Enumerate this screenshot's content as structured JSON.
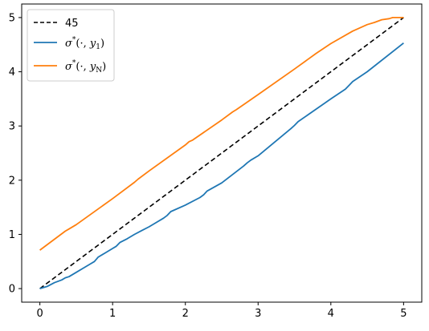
{
  "chart_data": {
    "type": "line",
    "title": "",
    "xlabel": "",
    "ylabel": "",
    "xlim": [
      -0.25,
      5.25
    ],
    "ylim": [
      -0.25,
      5.25
    ],
    "xticks": [
      0,
      1,
      2,
      3,
      4,
      5
    ],
    "yticks": [
      0,
      1,
      2,
      3,
      4,
      5
    ],
    "grid": false,
    "legend_position": "upper-left",
    "series": [
      {
        "name": "45",
        "style": "dashed",
        "color": "#000000",
        "x": [
          0,
          5
        ],
        "y": [
          0,
          5
        ]
      },
      {
        "name": "σ*(·, y1)",
        "style": "solid",
        "color": "#1f77b4",
        "x": [
          0,
          0.1,
          0.2,
          0.3,
          0.35,
          0.4,
          0.5,
          0.6,
          0.7,
          0.75,
          0.8,
          0.9,
          1.0,
          1.05,
          1.1,
          1.2,
          1.3,
          1.4,
          1.5,
          1.6,
          1.7,
          1.75,
          1.8,
          2.0,
          2.2,
          2.25,
          2.3,
          2.5,
          2.8,
          2.85,
          2.9,
          3.0,
          3.45,
          3.5,
          3.55,
          4.0,
          4.2,
          4.25,
          4.3,
          4.5,
          5.0
        ],
        "y": [
          0,
          0.04,
          0.11,
          0.16,
          0.2,
          0.22,
          0.3,
          0.38,
          0.46,
          0.5,
          0.58,
          0.66,
          0.74,
          0.78,
          0.85,
          0.92,
          1.0,
          1.07,
          1.14,
          1.22,
          1.3,
          1.35,
          1.42,
          1.54,
          1.68,
          1.73,
          1.8,
          1.95,
          2.26,
          2.32,
          2.37,
          2.45,
          2.95,
          3.01,
          3.08,
          3.5,
          3.68,
          3.75,
          3.82,
          4.0,
          4.53
        ]
      },
      {
        "name": "σ*(·, yN)",
        "style": "solid",
        "color": "#ff7f0e",
        "x": [
          0,
          0.35,
          0.4,
          0.5,
          1.0,
          1.3,
          1.35,
          1.5,
          2.0,
          2.05,
          2.1,
          2.5,
          2.65,
          2.7,
          3.0,
          3.5,
          3.8,
          4.0,
          4.3,
          4.5,
          4.6,
          4.7,
          4.8,
          4.85,
          4.9,
          5.0
        ],
        "y": [
          0.71,
          1.06,
          1.1,
          1.18,
          1.66,
          1.96,
          2.02,
          2.17,
          2.65,
          2.71,
          2.74,
          3.11,
          3.26,
          3.3,
          3.58,
          4.05,
          4.34,
          4.52,
          4.75,
          4.87,
          4.91,
          4.96,
          4.98,
          5.0,
          5.0,
          5.0
        ]
      }
    ],
    "legend_entries": [
      {
        "label_prefix": "σ",
        "label_sup": "*",
        "label_mid": "(·, ",
        "label_var": "y",
        "label_sub": "",
        "label_end": ")",
        "plain": "45"
      },
      {
        "label_prefix": "σ",
        "label_sup": "*",
        "label_mid": "(·, ",
        "label_var": "y",
        "label_sub": "1",
        "label_end": ")"
      },
      {
        "label_prefix": "σ",
        "label_sup": "*",
        "label_mid": "(·, ",
        "label_var": "y",
        "label_sub": "N",
        "label_end": ")"
      }
    ]
  }
}
